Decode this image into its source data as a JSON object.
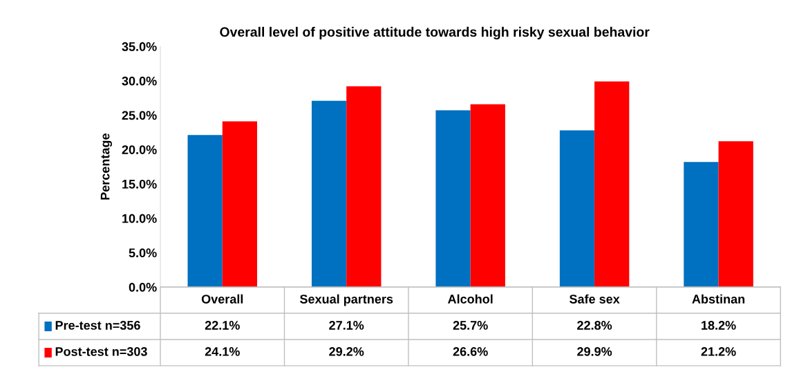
{
  "chart_data": {
    "type": "bar",
    "title": "Overall level of positive attitude towards high risky sexual behavior",
    "ylabel": "Percentage",
    "categories": [
      "Overall",
      "Sexual partners",
      "Alcohol",
      "Safe sex",
      "Abstinan"
    ],
    "series": [
      {
        "name": "Pre-test n=356",
        "color": "#0070c0",
        "values": [
          22.1,
          27.1,
          25.7,
          22.8,
          18.2
        ],
        "value_labels": [
          "22.1%",
          "27.1%",
          "25.7%",
          "22.8%",
          "18.2%"
        ]
      },
      {
        "name": "Post-test n=303",
        "color": "#ff0000",
        "values": [
          24.1,
          29.2,
          26.6,
          29.9,
          21.2
        ],
        "value_labels": [
          "24.1%",
          "29.2%",
          "26.6%",
          "29.9%",
          "21.2%"
        ]
      }
    ],
    "ylim": [
      0,
      35
    ],
    "yticks": [
      {
        "value": 0,
        "label": "0.0%"
      },
      {
        "value": 5,
        "label": "5.0%"
      },
      {
        "value": 10,
        "label": "10.0%"
      },
      {
        "value": 15,
        "label": "15.0%"
      },
      {
        "value": 20,
        "label": "20.0%"
      },
      {
        "value": 25,
        "label": "25.0%"
      },
      {
        "value": 30,
        "label": "30.0%"
      },
      {
        "value": 35,
        "label": "35.0%"
      }
    ],
    "grid": false,
    "legend": "bottom left"
  }
}
